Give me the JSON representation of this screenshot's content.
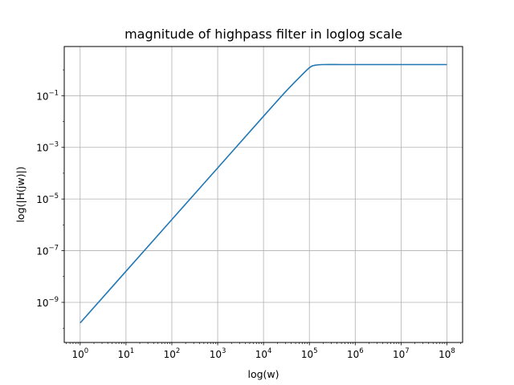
{
  "chart_data": {
    "type": "line",
    "title": "magnitude of highpass filter in loglog scale",
    "xlabel": "log(w)",
    "ylabel": "log(|H(jw)|)",
    "xscale": "log",
    "yscale": "log",
    "xlim": [
      0.45,
      220000000
    ],
    "ylim": [
      2.8e-11,
      8
    ],
    "grid": true,
    "x_ticks": [
      {
        "base": "10",
        "exp": "0",
        "value": 1
      },
      {
        "base": "10",
        "exp": "1",
        "value": 10
      },
      {
        "base": "10",
        "exp": "2",
        "value": 100
      },
      {
        "base": "10",
        "exp": "3",
        "value": 1000
      },
      {
        "base": "10",
        "exp": "4",
        "value": 10000
      },
      {
        "base": "10",
        "exp": "5",
        "value": 100000
      },
      {
        "base": "10",
        "exp": "6",
        "value": 1000000
      },
      {
        "base": "10",
        "exp": "7",
        "value": 10000000
      },
      {
        "base": "10",
        "exp": "8",
        "value": 100000000
      }
    ],
    "y_ticks": [
      {
        "base": "10",
        "exp": "−1",
        "value": 0.1
      },
      {
        "base": "10",
        "exp": "−3",
        "value": 0.001
      },
      {
        "base": "10",
        "exp": "−5",
        "value": 1e-05
      },
      {
        "base": "10",
        "exp": "−7",
        "value": 1e-07
      },
      {
        "base": "10",
        "exp": "−9",
        "value": 1e-09
      }
    ],
    "series": [
      {
        "color": "#1f77b4",
        "x": [
          1,
          10,
          100,
          1000,
          10000,
          30000,
          60000,
          100000,
          130000,
          200000,
          500000,
          1000000,
          10000000,
          100000000
        ],
        "y": [
          1.6e-10,
          1.6e-08,
          1.6e-06,
          0.00016,
          0.016,
          0.14,
          0.5,
          1.2,
          1.5,
          1.6,
          1.6,
          1.6,
          1.6,
          1.6
        ]
      }
    ]
  }
}
